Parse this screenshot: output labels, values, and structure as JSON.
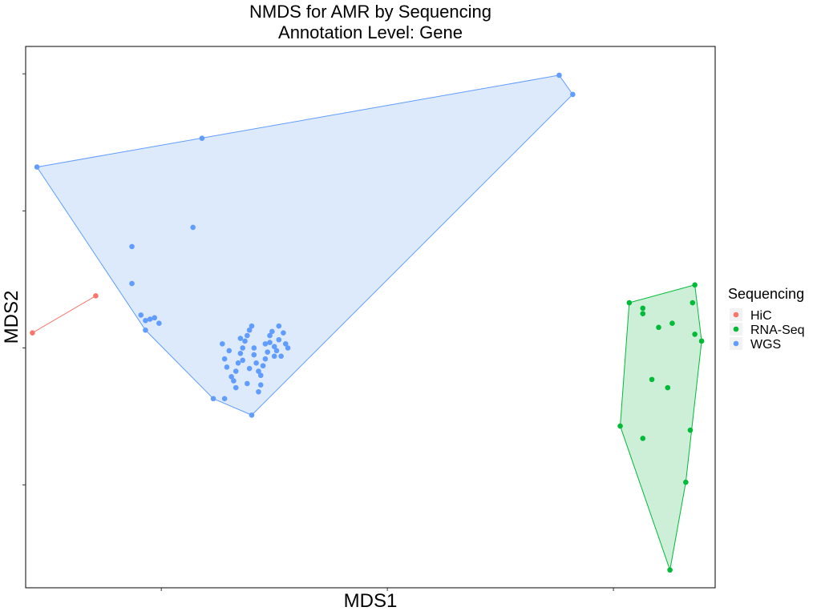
{
  "chart_data": {
    "type": "scatter",
    "title": "NMDS for AMR by Sequencing",
    "subtitle": "Annotation Level: Gene",
    "xlabel": "MDS1",
    "ylabel": "MDS2",
    "xlim": [
      -0.6,
      2.45
    ],
    "ylim": [
      -1.75,
      2.2
    ],
    "grid": false,
    "legend": {
      "title": "Sequencing",
      "position": "right"
    },
    "hull_fill": true,
    "series": [
      {
        "name": "HiC",
        "color": "#F8766D",
        "hull_fill_color": "",
        "points": [
          [
            -0.57,
            0.11
          ],
          [
            -0.29,
            0.38
          ]
        ]
      },
      {
        "name": "RNA-Seq",
        "color": "#00BA38",
        "hull_fill_color": "#CDEFD7",
        "points": [
          [
            2.07,
            0.33
          ],
          [
            2.13,
            0.29
          ],
          [
            2.13,
            0.25
          ],
          [
            2.2,
            0.15
          ],
          [
            2.26,
            0.18
          ],
          [
            2.35,
            0.33
          ],
          [
            2.36,
            0.46
          ],
          [
            2.36,
            0.1
          ],
          [
            2.39,
            0.05
          ],
          [
            2.17,
            -0.23
          ],
          [
            2.24,
            -0.29
          ],
          [
            2.03,
            -0.57
          ],
          [
            2.13,
            -0.66
          ],
          [
            2.34,
            -0.6
          ],
          [
            2.32,
            -0.98
          ],
          [
            2.25,
            -1.62
          ]
        ]
      },
      {
        "name": "WGS",
        "color": "#619CFF",
        "hull_fill_color": "#DCEAFC",
        "points": [
          [
            -0.55,
            1.32
          ],
          [
            0.18,
            1.53
          ],
          [
            0.14,
            0.88
          ],
          [
            -0.13,
            0.74
          ],
          [
            -0.13,
            0.47
          ],
          [
            -0.09,
            0.24
          ],
          [
            -0.07,
            0.2
          ],
          [
            -0.07,
            0.13
          ],
          [
            -0.05,
            0.21
          ],
          [
            -0.03,
            0.22
          ],
          [
            -0.01,
            0.18
          ],
          [
            0.23,
            -0.37
          ],
          [
            0.28,
            -0.37
          ],
          [
            0.4,
            -0.49
          ],
          [
            0.3,
            -0.02
          ],
          [
            0.27,
            0.03
          ],
          [
            0.28,
            -0.08
          ],
          [
            0.29,
            -0.14
          ],
          [
            0.31,
            -0.21
          ],
          [
            0.32,
            -0.24
          ],
          [
            0.33,
            -0.17
          ],
          [
            0.34,
            -0.11
          ],
          [
            0.35,
            -0.04
          ],
          [
            0.36,
            0.0
          ],
          [
            0.37,
            0.05
          ],
          [
            0.38,
            0.09
          ],
          [
            0.39,
            0.13
          ],
          [
            0.4,
            0.16
          ],
          [
            0.41,
            0.0
          ],
          [
            0.41,
            -0.05
          ],
          [
            0.42,
            -0.11
          ],
          [
            0.43,
            -0.17
          ],
          [
            0.44,
            -0.27
          ],
          [
            0.45,
            -0.13
          ],
          [
            0.46,
            -0.08
          ],
          [
            0.47,
            -0.03
          ],
          [
            0.48,
            0.04
          ],
          [
            0.48,
            0.09
          ],
          [
            0.49,
            0.12
          ],
          [
            0.5,
            0.01
          ],
          [
            0.51,
            -0.02
          ],
          [
            0.52,
            0.06
          ],
          [
            0.53,
            -0.06
          ],
          [
            0.54,
            0.11
          ],
          [
            0.55,
            0.03
          ],
          [
            0.56,
            0.0
          ],
          [
            0.36,
            -0.09
          ],
          [
            0.38,
            -0.26
          ],
          [
            0.43,
            -0.32
          ],
          [
            0.33,
            -0.29
          ],
          [
            0.39,
            -0.15
          ],
          [
            0.46,
            0.03
          ],
          [
            0.5,
            -0.06
          ],
          [
            0.52,
            0.16
          ],
          [
            0.35,
            0.07
          ],
          [
            0.44,
            -0.2
          ],
          [
            1.76,
            1.99
          ],
          [
            1.82,
            1.85
          ]
        ]
      }
    ]
  }
}
